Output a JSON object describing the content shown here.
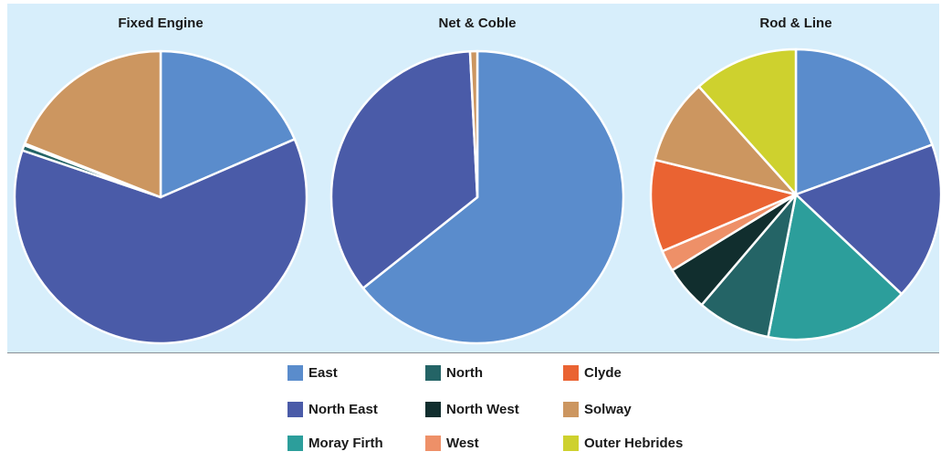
{
  "chart_data": [
    {
      "type": "pie",
      "title": "Fixed Engine",
      "categories": [
        "East",
        "North East",
        "Moray Firth",
        "North",
        "North West",
        "West",
        "Clyde",
        "Solway",
        "Outer Hebrides"
      ],
      "values": [
        18.5,
        61.7,
        0,
        0.6,
        0,
        0,
        0.2,
        19.0,
        0
      ]
    },
    {
      "type": "pie",
      "title": "Net & Coble",
      "categories": [
        "East",
        "North East",
        "Moray Firth",
        "North",
        "North West",
        "West",
        "Clyde",
        "Solway",
        "Outer Hebrides"
      ],
      "values": [
        64.3,
        34.9,
        0,
        0,
        0,
        0,
        0,
        0.8,
        0
      ]
    },
    {
      "type": "pie",
      "title": "Rod & Line",
      "categories": [
        "East",
        "North East",
        "Moray Firth",
        "North",
        "North West",
        "West",
        "Clyde",
        "Solway",
        "Outer Hebrides"
      ],
      "values": [
        19.0,
        17.2,
        15.7,
        8.0,
        4.9,
        2.3,
        10.0,
        9.3,
        11.4
      ]
    }
  ],
  "legend": [
    {
      "label": "East",
      "color": "#5a8ccc"
    },
    {
      "label": "North East",
      "color": "#4a5ba8"
    },
    {
      "label": "Moray Firth",
      "color": "#2c9e9b"
    },
    {
      "label": "North",
      "color": "#246466"
    },
    {
      "label": "North West",
      "color": "#112e2e"
    },
    {
      "label": "West",
      "color": "#ee9068"
    },
    {
      "label": "Clyde",
      "color": "#ea6332"
    },
    {
      "label": "Solway",
      "color": "#cc9660"
    },
    {
      "label": "Outer Hebrides",
      "color": "#ced12e"
    }
  ]
}
